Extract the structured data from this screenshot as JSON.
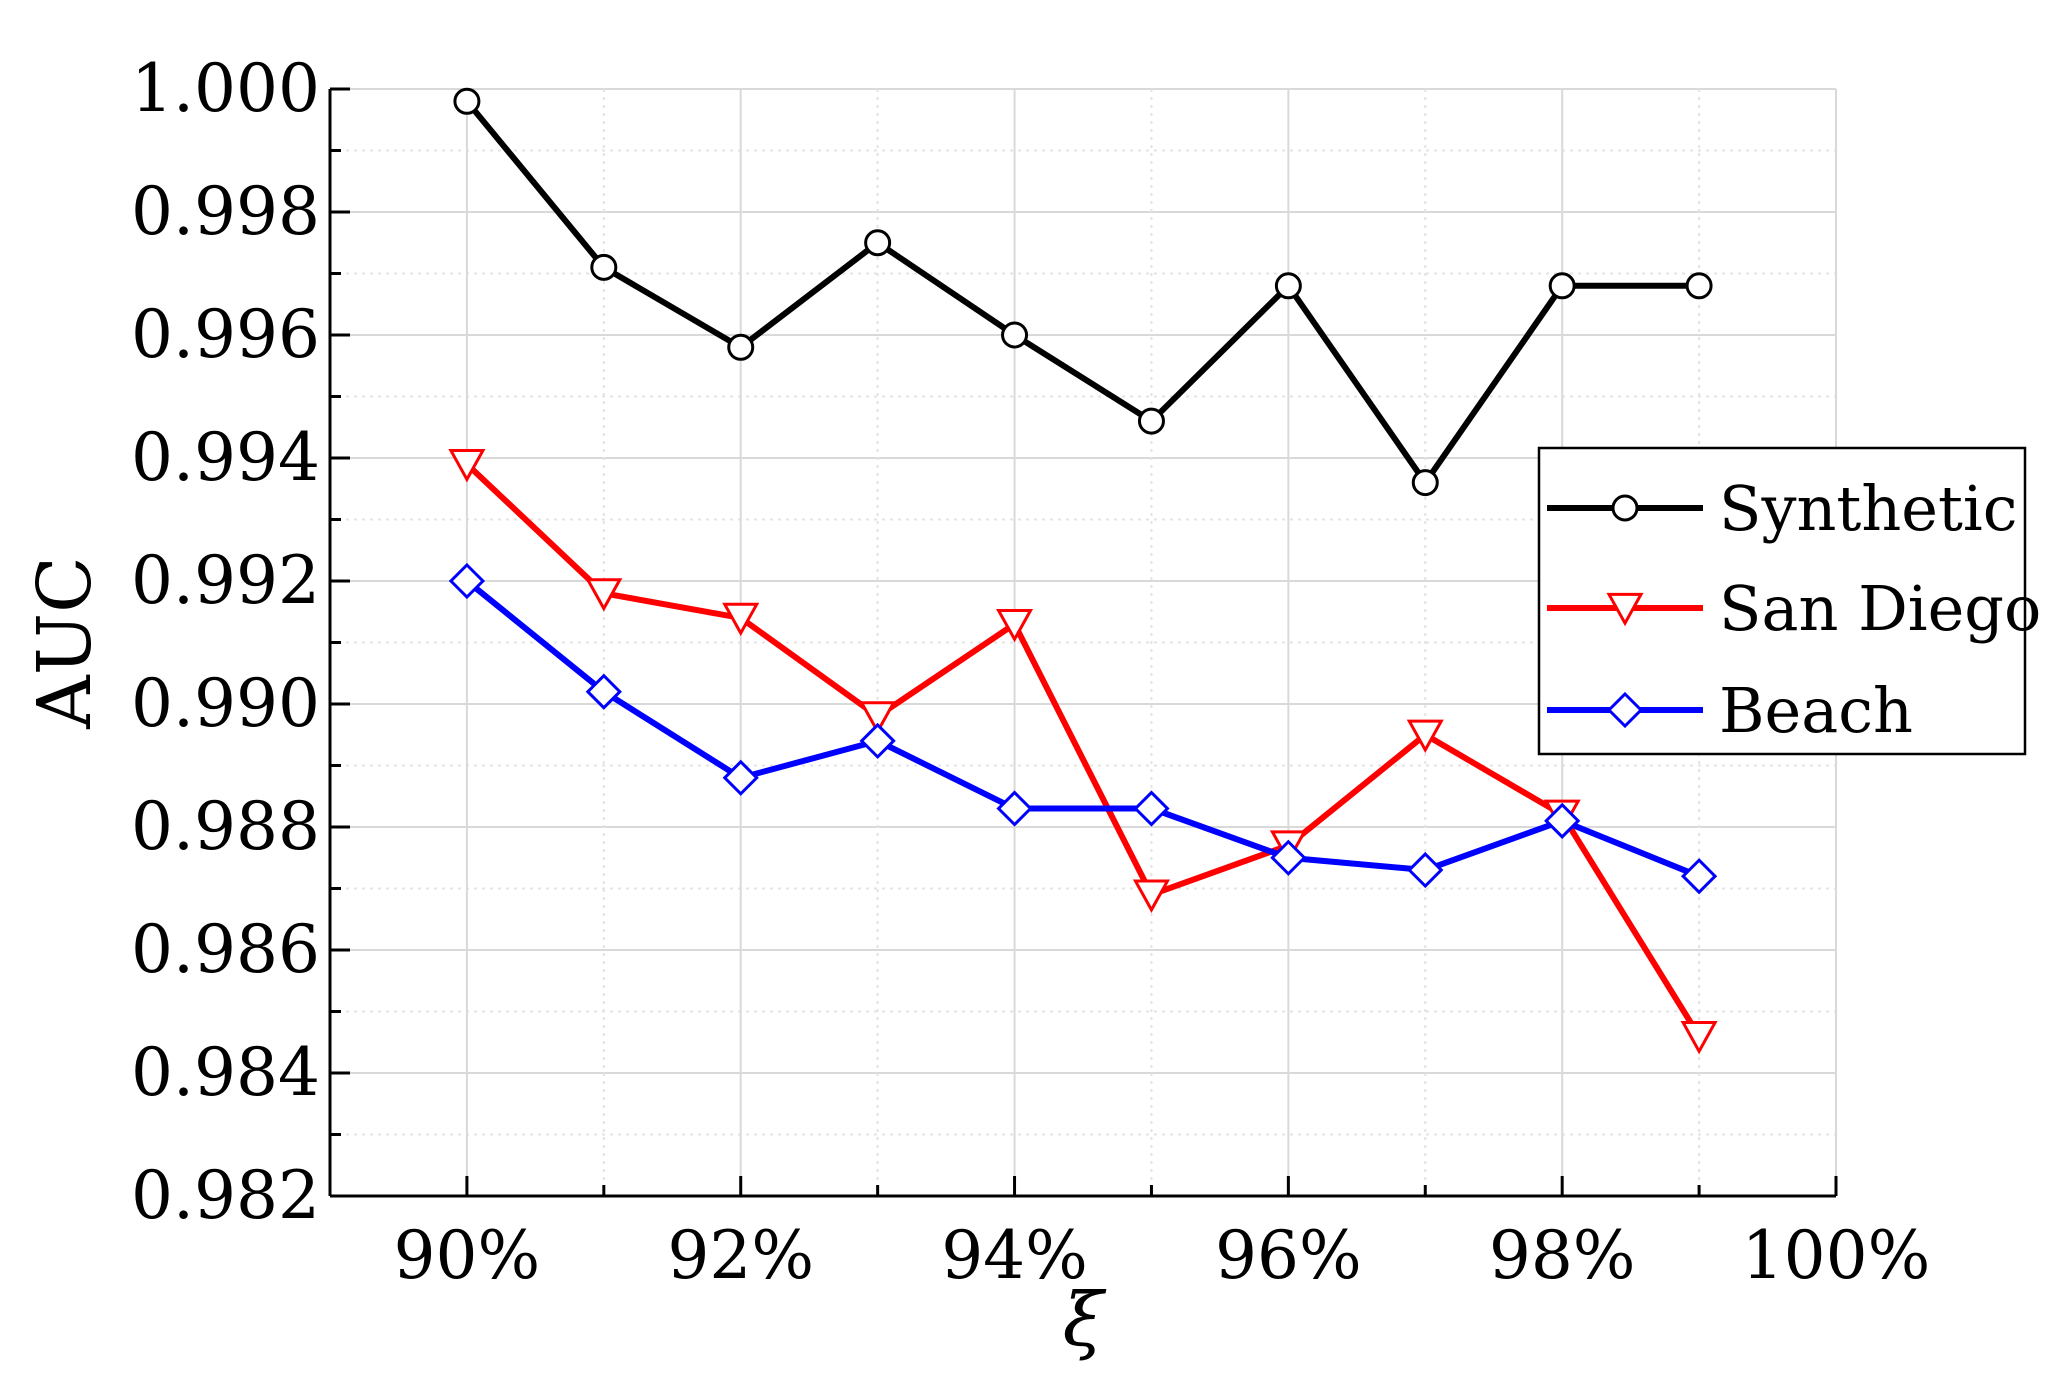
{
  "chart_data": {
    "type": "line",
    "title": "",
    "xlabel": "ξ",
    "ylabel": "AUC",
    "x": [
      90,
      91,
      92,
      93,
      94,
      95,
      96,
      97,
      98,
      99
    ],
    "xlim": [
      89,
      100
    ],
    "ylim": [
      0.982,
      1.0
    ],
    "x_ticks": [
      90,
      92,
      94,
      96,
      98,
      100
    ],
    "x_tick_labels": [
      "90%",
      "92%",
      "94%",
      "96%",
      "98%",
      "100%"
    ],
    "y_ticks": [
      0.982,
      0.984,
      0.986,
      0.988,
      0.99,
      0.992,
      0.994,
      0.996,
      0.998,
      1.0
    ],
    "y_tick_labels": [
      "0.982",
      "0.984",
      "0.986",
      "0.988",
      "0.990",
      "0.992",
      "0.994",
      "0.996",
      "0.998",
      "1.000"
    ],
    "grid": true,
    "legend_position": "right",
    "series": [
      {
        "name": "Synthetic",
        "color": "#000000",
        "marker": "circle",
        "values": [
          0.9998,
          0.9971,
          0.9958,
          0.9975,
          0.996,
          0.9946,
          0.9968,
          0.9936,
          0.9968,
          0.9968
        ]
      },
      {
        "name": "San Diego",
        "color": "#ff0000",
        "marker": "triangle-down",
        "values": [
          0.9939,
          0.9918,
          0.9914,
          0.9898,
          0.9913,
          0.9869,
          0.9877,
          0.9895,
          0.9882,
          0.9846
        ]
      },
      {
        "name": "Beach",
        "color": "#0000ff",
        "marker": "diamond",
        "values": [
          0.992,
          0.9902,
          0.9888,
          0.9894,
          0.9883,
          0.9883,
          0.9875,
          0.9873,
          0.9881,
          0.9872
        ]
      }
    ]
  }
}
